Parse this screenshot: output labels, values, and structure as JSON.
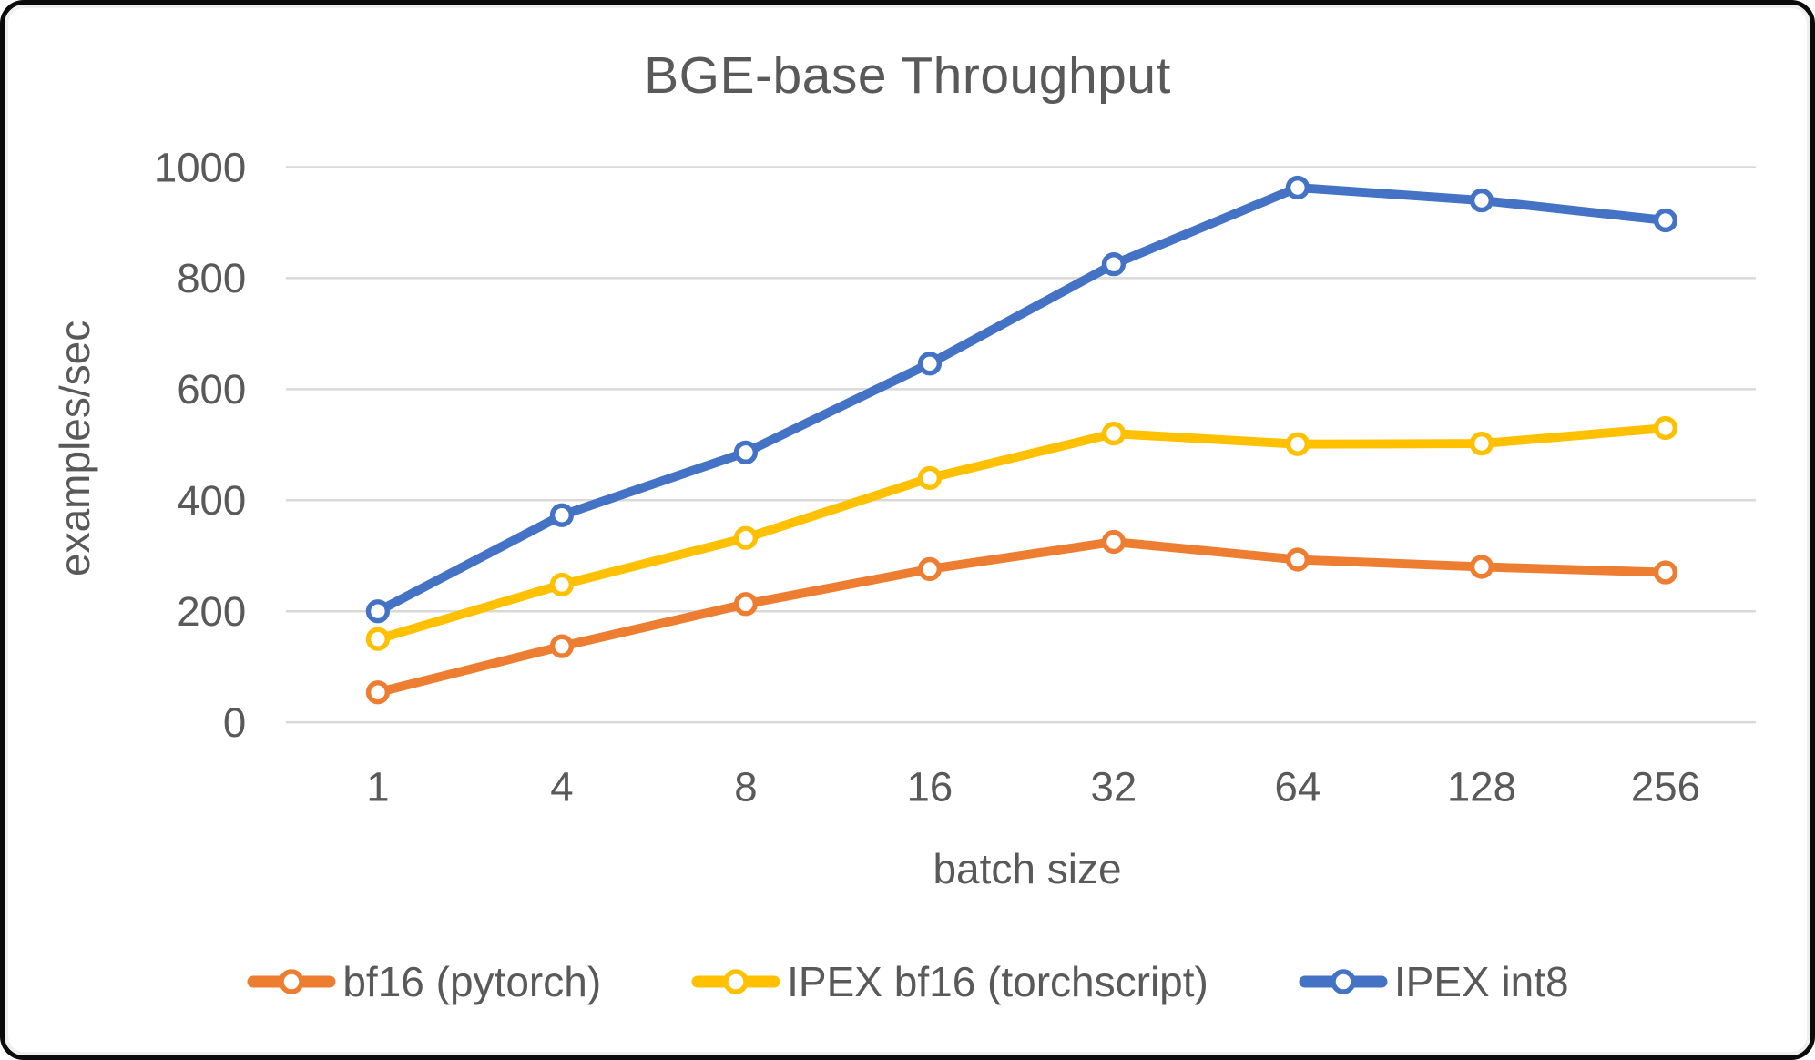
{
  "page": {
    "background": "#ffffff",
    "frame_border_color": "#0b0b0b"
  },
  "chart_data": {
    "type": "line",
    "title": "BGE-base Throughput",
    "xlabel": "batch size",
    "ylabel": "examples/sec",
    "categories": [
      "1",
      "4",
      "8",
      "16",
      "32",
      "64",
      "128",
      "256"
    ],
    "series": [
      {
        "name": "bf16 (pytorch)",
        "color": "#ED7D31",
        "values": [
          54,
          137,
          213,
          276,
          325,
          293,
          280,
          270
        ]
      },
      {
        "name": "IPEX bf16 (torchscript)",
        "color": "#FFC000",
        "values": [
          150,
          248,
          332,
          440,
          520,
          501,
          502,
          530
        ]
      },
      {
        "name": "IPEX int8",
        "color": "#4472C4",
        "values": [
          200,
          373,
          486,
          646,
          825,
          963,
          940,
          904
        ]
      }
    ],
    "ylim": [
      0,
      1000
    ],
    "yticks": [
      0,
      200,
      400,
      600,
      800,
      1000
    ],
    "grid": true,
    "gridline_color": "#D9D9D9",
    "text_color": "#595959",
    "legend_position": "bottom",
    "marker_style": "hollow-circle"
  }
}
